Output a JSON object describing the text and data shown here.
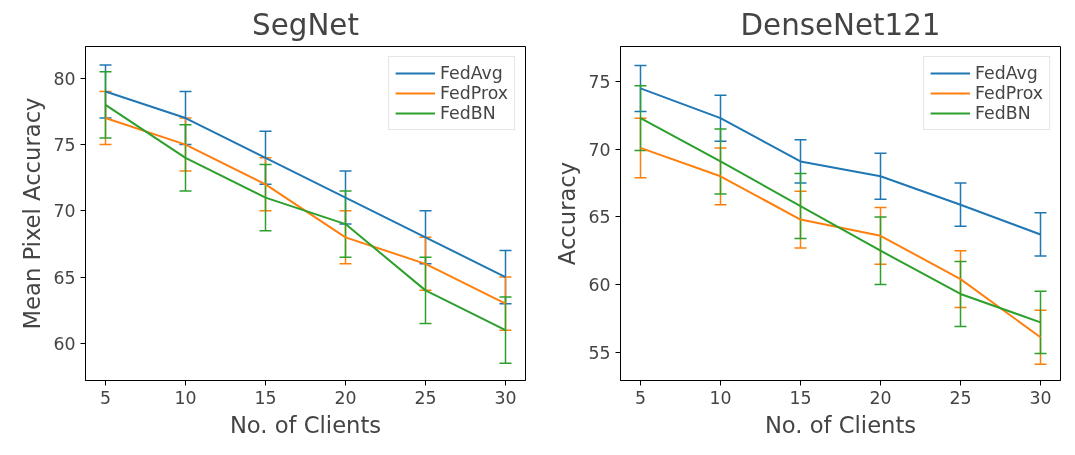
{
  "chart_data": [
    {
      "type": "line",
      "title": "SegNet",
      "xlabel": "No. of Clients",
      "ylabel": "Mean Pixel Accuracy",
      "x": [
        5,
        10,
        15,
        20,
        25,
        30
      ],
      "xlim": [
        3.75,
        31.25
      ],
      "xticks": [
        5,
        10,
        15,
        20,
        25,
        30
      ],
      "ylim": [
        57.2,
        82.4
      ],
      "yticks": [
        60,
        65,
        70,
        75,
        80
      ],
      "grid": false,
      "legend": "top right",
      "marker": "none",
      "series": [
        {
          "name": "FedAvg",
          "color": "#1f77b4",
          "values": [
            79,
            77,
            74,
            71,
            68,
            65
          ],
          "errors": [
            2,
            2,
            2,
            2,
            2,
            2
          ]
        },
        {
          "name": "FedProx",
          "color": "#ff7f0e",
          "values": [
            77,
            75,
            72,
            68,
            66,
            63
          ],
          "errors": [
            2,
            2,
            2,
            2,
            2,
            2
          ]
        },
        {
          "name": "FedBN",
          "color": "#2ca02c",
          "values": [
            78,
            74,
            71,
            69,
            64,
            61
          ],
          "errors": [
            2.5,
            2.5,
            2.5,
            2.5,
            2.5,
            2.5
          ]
        }
      ]
    },
    {
      "type": "line",
      "title": "DenseNet121",
      "xlabel": "No. of Clients",
      "ylabel": "Accuracy",
      "x": [
        5,
        10,
        15,
        20,
        25,
        30
      ],
      "xlim": [
        3.75,
        31.25
      ],
      "xticks": [
        5,
        10,
        15,
        20,
        25,
        30
      ],
      "ylim": [
        52.9,
        77.6
      ],
      "yticks": [
        55,
        60,
        65,
        70,
        75
      ],
      "grid": false,
      "legend": "top right",
      "marker": "none",
      "series": [
        {
          "name": "FedAvg",
          "color": "#1f77b4",
          "values": [
            74.5,
            72.3,
            69.1,
            68.0,
            65.9,
            63.7
          ],
          "errors": [
            1.7,
            1.7,
            1.6,
            1.7,
            1.6,
            1.6
          ]
        },
        {
          "name": "FedProx",
          "color": "#ff7f0e",
          "values": [
            70.1,
            68.0,
            64.8,
            63.6,
            60.4,
            56.1
          ],
          "errors": [
            2.2,
            2.1,
            2.1,
            2.1,
            2.1,
            2.0
          ]
        },
        {
          "name": "FedBN",
          "color": "#2ca02c",
          "values": [
            72.3,
            69.1,
            65.8,
            62.5,
            59.3,
            57.2
          ],
          "errors": [
            2.4,
            2.4,
            2.4,
            2.5,
            2.4,
            2.3
          ]
        }
      ]
    }
  ]
}
